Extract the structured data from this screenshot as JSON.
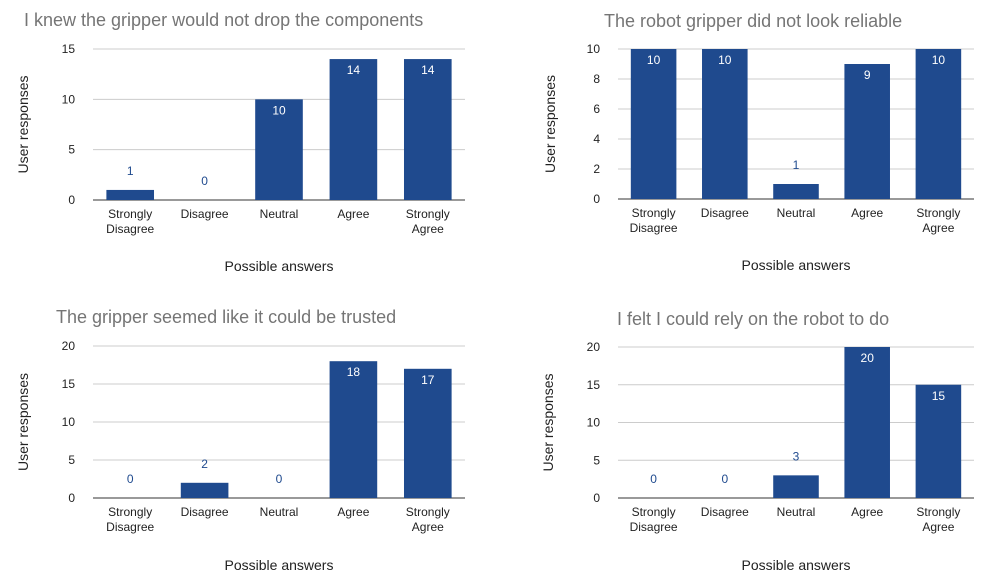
{
  "colors": {
    "bar": "#1f4a8e",
    "label_outside": "#1f4a8e",
    "label_inside": "#ffffff",
    "title": "#757575",
    "grid": "#cccccc"
  },
  "chart_data": [
    {
      "type": "bar",
      "title": "I knew the gripper would not drop the components",
      "xlabel": "Possible answers",
      "ylabel": "User responses",
      "categories": [
        [
          "Strongly",
          "Disagree"
        ],
        [
          "Disagree"
        ],
        [
          "Neutral"
        ],
        [
          "Agree"
        ],
        [
          "Strongly",
          "Agree"
        ]
      ],
      "values": [
        1,
        0,
        10,
        14,
        14
      ],
      "yticks": [
        0,
        5,
        10,
        15
      ],
      "ylim": [
        0,
        15
      ],
      "grid": true,
      "legend": "none"
    },
    {
      "type": "bar",
      "title": "The robot gripper did not look reliable",
      "xlabel": "Possible answers",
      "ylabel": "User responses",
      "categories": [
        [
          "Strongly",
          "Disagree"
        ],
        [
          "Disagree"
        ],
        [
          "Neutral"
        ],
        [
          "Agree"
        ],
        [
          "Strongly",
          "Agree"
        ]
      ],
      "values": [
        10,
        10,
        1,
        9,
        10
      ],
      "yticks": [
        0,
        2,
        4,
        6,
        8,
        10
      ],
      "ylim": [
        0,
        10
      ],
      "grid": true,
      "legend": "none"
    },
    {
      "type": "bar",
      "title": "The gripper seemed like it could be trusted",
      "xlabel": "Possible answers",
      "ylabel": "User responses",
      "categories": [
        [
          "Strongly",
          "Disagree"
        ],
        [
          "Disagree"
        ],
        [
          "Neutral"
        ],
        [
          "Agree"
        ],
        [
          "Strongly",
          "Agree"
        ]
      ],
      "values": [
        0,
        2,
        0,
        18,
        17
      ],
      "yticks": [
        0,
        5,
        10,
        15,
        20
      ],
      "ylim": [
        0,
        20
      ],
      "grid": true,
      "legend": "none"
    },
    {
      "type": "bar",
      "title": "I felt I could rely on the robot to do",
      "xlabel": "Possible answers",
      "ylabel": "User responses",
      "categories": [
        [
          "Strongly",
          "Disagree"
        ],
        [
          "Disagree"
        ],
        [
          "Neutral"
        ],
        [
          "Agree"
        ],
        [
          "Strongly",
          "Agree"
        ]
      ],
      "values": [
        0,
        0,
        3,
        20,
        15
      ],
      "yticks": [
        0,
        5,
        10,
        15,
        20
      ],
      "ylim": [
        0,
        20
      ],
      "grid": true,
      "legend": "none"
    }
  ]
}
